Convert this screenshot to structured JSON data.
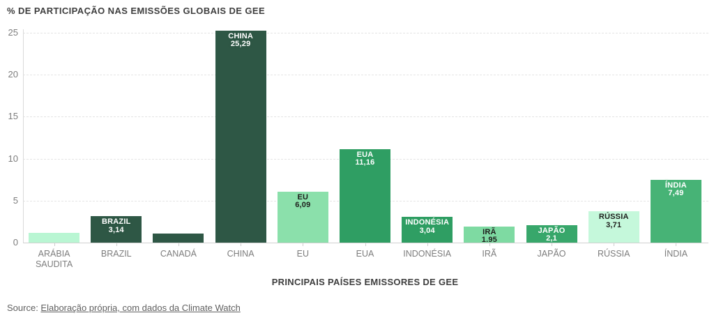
{
  "chart_data": {
    "type": "bar",
    "title": "% DE PARTICIPAÇÃO NAS EMISSÕES GLOBAIS DE GEE",
    "xlabel": "PRINCIPAIS PAÍSES EMISSORES DE GEE",
    "ylabel": "",
    "ylim": [
      0,
      25
    ],
    "yticks": [
      0,
      5,
      10,
      15,
      20,
      25
    ],
    "grid": true,
    "legend": false,
    "categories": [
      "ARÁBIA SAUDITA",
      "BRAZIL",
      "CANADÁ",
      "CHINA",
      "EU",
      "EUA",
      "INDONÉSIA",
      "IRÃ",
      "JAPÃO",
      "RÚSSIA",
      "ÍNDIA"
    ],
    "bars": [
      {
        "category": "ARÁBIA SAUDITA",
        "value": 1.2,
        "show_label": false,
        "name_label": "",
        "value_label": "",
        "color": "#b9f6d3",
        "label_text_color": "#1d1d1b"
      },
      {
        "category": "BRAZIL",
        "value": 3.14,
        "show_label": true,
        "name_label": "BRAZIL",
        "value_label": "3,14",
        "color": "#2e5745",
        "label_text_color": "#ffffff"
      },
      {
        "category": "CANADÁ",
        "value": 1.1,
        "show_label": false,
        "name_label": "",
        "value_label": "",
        "color": "#2e5745",
        "label_text_color": "#ffffff"
      },
      {
        "category": "CHINA",
        "value": 25.29,
        "show_label": true,
        "name_label": "CHINA",
        "value_label": "25,29",
        "color": "#2e5745",
        "label_text_color": "#ffffff"
      },
      {
        "category": "EU",
        "value": 6.09,
        "show_label": true,
        "name_label": "EU",
        "value_label": "6,09",
        "color": "#8be0ab",
        "label_text_color": "#1d1d1b"
      },
      {
        "category": "EUA",
        "value": 11.16,
        "show_label": true,
        "name_label": "EUA",
        "value_label": "11,16",
        "color": "#2f9e63",
        "label_text_color": "#ffffff"
      },
      {
        "category": "INDONÉSIA",
        "value": 3.04,
        "show_label": true,
        "name_label": "INDONÉSIA",
        "value_label": "3,04",
        "color": "#2f9e63",
        "label_text_color": "#ffffff"
      },
      {
        "category": "IRÃ",
        "value": 1.95,
        "show_label": true,
        "name_label": "IRÃ",
        "value_label": "1.95",
        "color": "#7edaa2",
        "label_text_color": "#1d1d1b"
      },
      {
        "category": "JAPÃO",
        "value": 2.1,
        "show_label": true,
        "name_label": "JAPÃO",
        "value_label": "2,1",
        "color": "#38a76b",
        "label_text_color": "#ffffff"
      },
      {
        "category": "RÚSSIA",
        "value": 3.71,
        "show_label": true,
        "name_label": "RÚSSIA",
        "value_label": "3,71",
        "color": "#c5f8db",
        "label_text_color": "#1d1d1b"
      },
      {
        "category": "ÍNDIA",
        "value": 7.49,
        "show_label": true,
        "name_label": "ÍNDIA",
        "value_label": "7,49",
        "color": "#47b376",
        "label_text_color": "#ffffff"
      }
    ],
    "axis_colors": {
      "grid": "#e4e4e4",
      "baseline": "#cfcfcf",
      "tick_text": "#7c7c7c",
      "title_text": "#3e3e3e"
    }
  },
  "footer": {
    "source_prefix": "Source: ",
    "source_link_text": "Elaboração própria, com dados da Climate Watch"
  }
}
